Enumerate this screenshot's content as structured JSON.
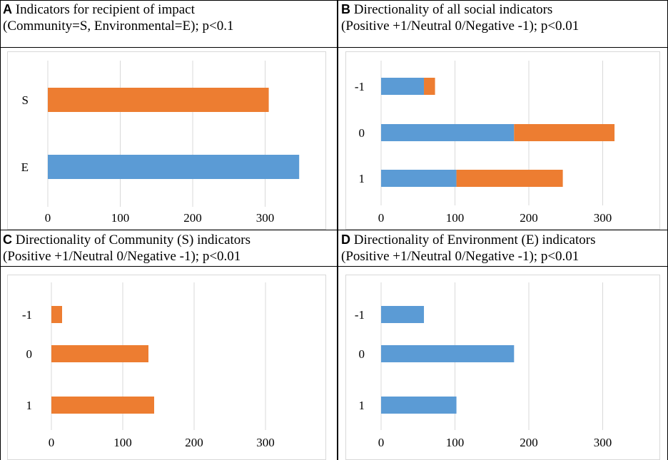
{
  "colors": {
    "community": "#ed7d31",
    "environmental": "#5b9bd5",
    "gridline": "#d9d9d9"
  },
  "chart_data": [
    {
      "id": "A",
      "type": "bar",
      "orientation": "horizontal",
      "letter": "A",
      "title_line1": "Indicators for recipient of impact",
      "title_line2": "(Community=S, Environmental=E); p<0.1",
      "categories": [
        "S",
        "E"
      ],
      "series": [
        {
          "values": [
            305,
            0
          ],
          "color": "#ed7d31"
        },
        {
          "values": [
            0,
            347
          ],
          "color": "#5b9bd5"
        }
      ],
      "xticks": [
        "0",
        "100",
        "200",
        "300"
      ],
      "xlim": [
        0,
        385
      ],
      "stacked": true,
      "grid": true
    },
    {
      "id": "B",
      "type": "bar",
      "orientation": "horizontal",
      "letter": "B",
      "title_line1": "Directionality of all social indicators",
      "title_line2": "(Positive +1/Neutral 0/Negative -1); p<0.01",
      "categories": [
        "-1",
        "0",
        "1"
      ],
      "series": [
        {
          "values": [
            58,
            180,
            102
          ],
          "color": "#5b9bd5"
        },
        {
          "values": [
            15,
            136,
            144
          ],
          "color": "#ed7d31"
        }
      ],
      "xticks": [
        "0",
        "100",
        "200",
        "300"
      ],
      "xlim": [
        0,
        355
      ],
      "stacked": true,
      "grid": true
    },
    {
      "id": "C",
      "type": "bar",
      "orientation": "horizontal",
      "letter": "C",
      "title_line1": "Directionality of Community (S) indicators",
      "title_line2": "(Positive +1/Neutral 0/Negative -1); p<0.01",
      "categories": [
        "-1",
        "0",
        "1"
      ],
      "series": [
        {
          "values": [
            15,
            136,
            144
          ],
          "color": "#ed7d31"
        }
      ],
      "xticks": [
        "0",
        "100",
        "200",
        "300"
      ],
      "xlim": [
        0,
        355
      ],
      "stacked": true,
      "grid": true
    },
    {
      "id": "D",
      "type": "bar",
      "orientation": "horizontal",
      "letter": "D",
      "title_line1": "Directionality of Environment (E) indicators",
      "title_line2": "(Positive +1/Neutral 0/Negative -1); p<0.01",
      "categories": [
        "-1",
        "0",
        "1"
      ],
      "series": [
        {
          "values": [
            58,
            180,
            102
          ],
          "color": "#5b9bd5"
        }
      ],
      "xticks": [
        "0",
        "100",
        "200",
        "300"
      ],
      "xlim": [
        0,
        355
      ],
      "stacked": true,
      "grid": true
    }
  ]
}
